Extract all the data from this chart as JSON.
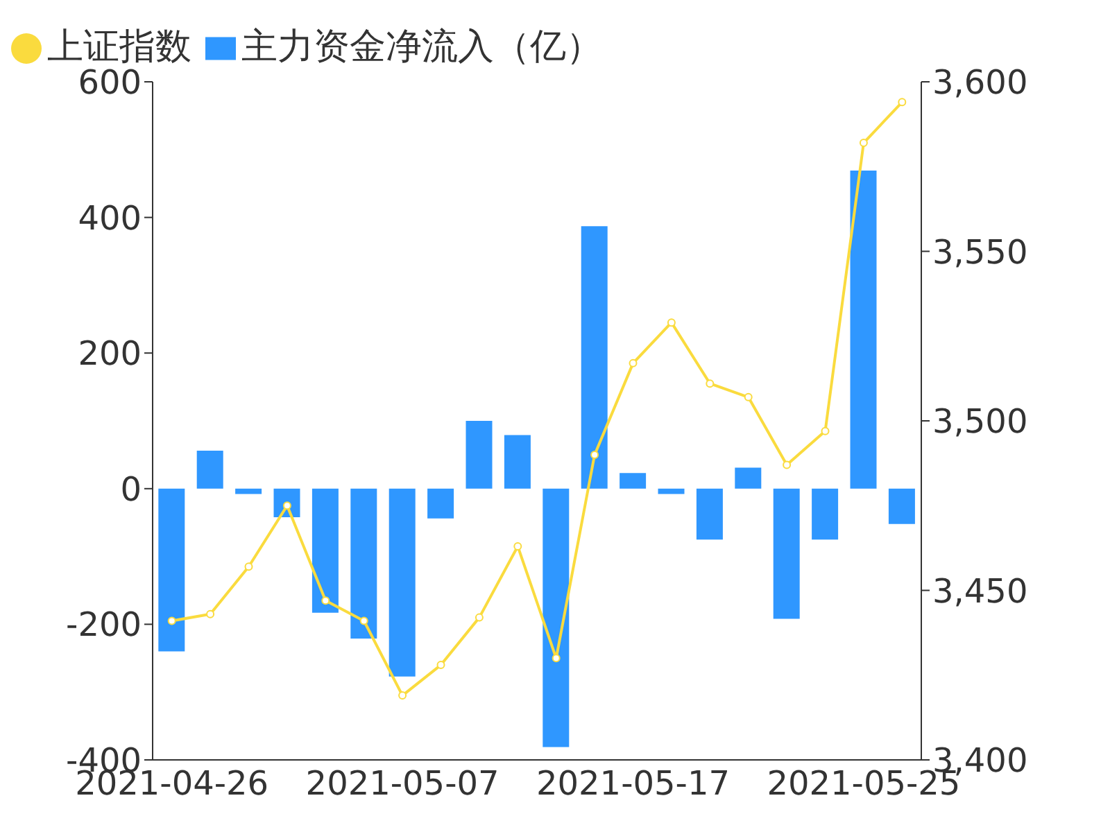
{
  "chart_data": {
    "type": "bar",
    "categories": [
      "2021-04-26",
      null,
      null,
      null,
      null,
      null,
      "2021-05-07",
      null,
      null,
      null,
      null,
      null,
      "2021-05-17",
      null,
      null,
      null,
      null,
      null,
      "2021-05-25",
      null
    ],
    "series": [
      {
        "name": "主力资金净流入（亿）",
        "color": "#2f97ff",
        "values": [
          -240,
          56,
          -8,
          -42,
          -183,
          -221,
          -277,
          -44,
          100,
          79,
          -381,
          387,
          23,
          -8,
          -75,
          31,
          -192,
          -75,
          469,
          -52
        ]
      },
      {
        "name": "上证指数",
        "type": "line",
        "axis": "y2",
        "color": "#fadb3e",
        "values": [
          3441,
          3443,
          3457,
          3475,
          3447,
          3441,
          3419,
          3428,
          3442,
          3463,
          3430,
          3490,
          3517,
          3529,
          3511,
          3507,
          3487,
          3497,
          3582,
          3594
        ]
      }
    ],
    "ylim": [
      -400,
      600
    ],
    "yticks": [
      -400,
      -200,
      0,
      200,
      400,
      600
    ],
    "y2lim": [
      3400,
      3600
    ],
    "y2ticks": [
      {
        "value": 3400,
        "label": "3,400"
      },
      {
        "value": 3450,
        "label": "3,450"
      },
      {
        "value": 3500,
        "label": "3,500"
      },
      {
        "value": 3550,
        "label": "3,550"
      },
      {
        "value": 3600,
        "label": "3,600"
      }
    ],
    "legend": "top left",
    "marker": "circle",
    "line_style": "solid",
    "grid": false
  }
}
